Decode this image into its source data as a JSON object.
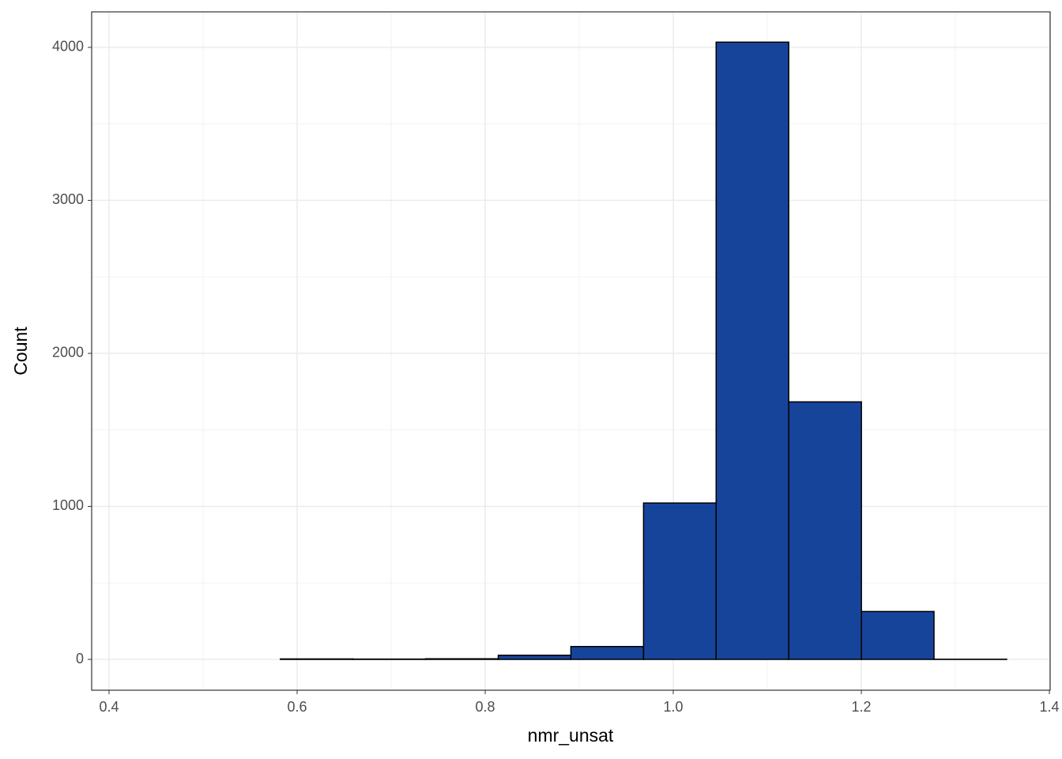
{
  "chart_data": {
    "type": "histogram",
    "x_label": "nmr_unsat",
    "y_label": "Count",
    "bins": [
      0.4277,
      0.5049,
      0.5822,
      0.6594,
      0.7366,
      0.8139,
      0.8911,
      0.9684,
      1.0456,
      1.1228,
      1.2001,
      1.2773,
      1.3546
    ],
    "values": [
      0,
      0,
      3,
      2,
      4,
      27,
      84,
      1022,
      4034,
      1683,
      313,
      1
    ],
    "color": "#17449b",
    "edge_color": "#000000",
    "xlim": [
      0.3815,
      1.4008
    ],
    "ylim": [
      -201.5,
      4232
    ],
    "xticks": [
      0.4,
      0.6,
      0.8,
      {
        "value": 1,
        "label": "1.0"
      },
      1.2,
      1.4
    ],
    "yticks": [
      0,
      1000,
      2000,
      3000,
      4000
    ],
    "xminor": [
      0.5,
      0.7,
      0.9,
      1.1,
      1.3
    ],
    "yminor": [
      500,
      1500,
      2500,
      3500
    ],
    "grid": true
  }
}
